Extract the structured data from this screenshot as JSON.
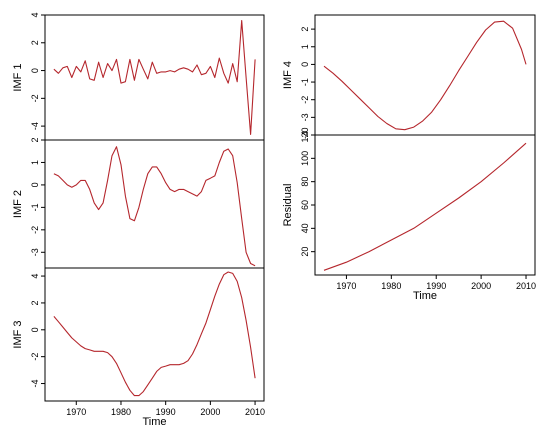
{
  "colors": {
    "line": "#b5272d",
    "axis": "#000000",
    "background": "#ffffff"
  },
  "chart_data": [
    {
      "id": "imf1",
      "type": "line",
      "ylabel": "IMF 1",
      "xlabel": "",
      "ylim": [
        -5.0,
        4.0
      ],
      "yticks": [
        -4,
        -2,
        0,
        2,
        4
      ],
      "xlim": [
        1963,
        2012
      ],
      "xticks": [],
      "grid": false,
      "x": [
        1965,
        1966,
        1967,
        1968,
        1969,
        1970,
        1971,
        1972,
        1973,
        1974,
        1975,
        1976,
        1977,
        1978,
        1979,
        1980,
        1981,
        1982,
        1983,
        1984,
        1985,
        1986,
        1987,
        1988,
        1989,
        1990,
        1991,
        1992,
        1993,
        1994,
        1995,
        1996,
        1997,
        1998,
        1999,
        2000,
        2001,
        2002,
        2003,
        2004,
        2005,
        2006,
        2007,
        2008,
        2009,
        2010
      ],
      "y": [
        0.1,
        -0.2,
        0.2,
        0.3,
        -0.5,
        0.3,
        -0.1,
        0.7,
        -0.6,
        -0.7,
        0.6,
        -0.5,
        0.5,
        0.0,
        0.8,
        -0.9,
        -0.8,
        0.8,
        -0.7,
        0.8,
        0.1,
        -0.6,
        0.6,
        -0.2,
        -0.1,
        -0.1,
        0.0,
        -0.1,
        0.1,
        0.2,
        0.1,
        -0.1,
        0.4,
        -0.3,
        -0.2,
        0.3,
        -0.5,
        0.9,
        -0.2,
        -0.9,
        0.5,
        -0.8,
        3.6,
        -0.5,
        -4.6,
        0.8
      ]
    },
    {
      "id": "imf2",
      "type": "line",
      "ylabel": "IMF 2",
      "xlabel": "",
      "ylim": [
        -3.7,
        2.0
      ],
      "yticks": [
        -3,
        -2,
        -1,
        0,
        1,
        2
      ],
      "xlim": [
        1963,
        2012
      ],
      "xticks": [],
      "grid": false,
      "x": [
        1965,
        1966,
        1967,
        1968,
        1969,
        1970,
        1971,
        1972,
        1973,
        1974,
        1975,
        1976,
        1977,
        1978,
        1979,
        1980,
        1981,
        1982,
        1983,
        1984,
        1985,
        1986,
        1987,
        1988,
        1989,
        1990,
        1991,
        1992,
        1993,
        1994,
        1995,
        1996,
        1997,
        1998,
        1999,
        2000,
        2001,
        2002,
        2003,
        2004,
        2005,
        2006,
        2007,
        2008,
        2009,
        2010
      ],
      "y": [
        0.5,
        0.4,
        0.2,
        0.0,
        -0.1,
        0.0,
        0.2,
        0.2,
        -0.2,
        -0.8,
        -1.1,
        -0.8,
        0.2,
        1.3,
        1.7,
        0.9,
        -0.5,
        -1.5,
        -1.6,
        -1.0,
        -0.2,
        0.5,
        0.8,
        0.8,
        0.5,
        0.1,
        -0.2,
        -0.3,
        -0.2,
        -0.2,
        -0.3,
        -0.4,
        -0.5,
        -0.3,
        0.2,
        0.3,
        0.4,
        1.0,
        1.5,
        1.6,
        1.3,
        0.1,
        -1.5,
        -3.0,
        -3.5,
        -3.6
      ]
    },
    {
      "id": "imf3",
      "type": "line",
      "ylabel": "IMF 3",
      "xlabel": "Time",
      "ylim": [
        -5.3,
        4.6
      ],
      "yticks": [
        -4,
        -2,
        0,
        2,
        4
      ],
      "xlim": [
        1963,
        2012
      ],
      "xticks": [
        1970,
        1980,
        1990,
        2000,
        2010
      ],
      "grid": false,
      "x": [
        1965,
        1966,
        1967,
        1968,
        1969,
        1970,
        1971,
        1972,
        1973,
        1974,
        1975,
        1976,
        1977,
        1978,
        1979,
        1980,
        1981,
        1982,
        1983,
        1984,
        1985,
        1986,
        1987,
        1988,
        1989,
        1990,
        1991,
        1992,
        1993,
        1994,
        1995,
        1996,
        1997,
        1998,
        1999,
        2000,
        2001,
        2002,
        2003,
        2004,
        2005,
        2006,
        2007,
        2008,
        2009,
        2010
      ],
      "y": [
        1.0,
        0.6,
        0.2,
        -0.2,
        -0.6,
        -0.9,
        -1.2,
        -1.4,
        -1.5,
        -1.6,
        -1.6,
        -1.6,
        -1.7,
        -2.0,
        -2.5,
        -3.2,
        -3.9,
        -4.5,
        -4.9,
        -4.9,
        -4.6,
        -4.1,
        -3.6,
        -3.1,
        -2.8,
        -2.7,
        -2.6,
        -2.6,
        -2.6,
        -2.5,
        -2.3,
        -1.8,
        -1.1,
        -0.3,
        0.5,
        1.5,
        2.5,
        3.4,
        4.1,
        4.3,
        4.2,
        3.6,
        2.4,
        0.7,
        -1.3,
        -3.6
      ]
    },
    {
      "id": "imf4",
      "type": "line",
      "ylabel": "IMF 4",
      "xlabel": "",
      "ylim": [
        -4.0,
        2.8
      ],
      "yticks": [
        -4,
        -3,
        -2,
        -1,
        0,
        1,
        2
      ],
      "ytick_labels": [
        "-4",
        "-3",
        "-2",
        "-1",
        "0",
        "1",
        "2"
      ],
      "xlim": [
        1963,
        2012
      ],
      "xticks": [],
      "grid": false,
      "x": [
        1965,
        1967,
        1969,
        1971,
        1973,
        1975,
        1977,
        1979,
        1981,
        1983,
        1985,
        1987,
        1989,
        1991,
        1993,
        1995,
        1997,
        1999,
        2001,
        2003,
        2005,
        2007,
        2009,
        2010
      ],
      "y": [
        -0.1,
        -0.5,
        -0.95,
        -1.45,
        -1.95,
        -2.45,
        -2.95,
        -3.35,
        -3.65,
        -3.7,
        -3.55,
        -3.2,
        -2.7,
        -2.0,
        -1.2,
        -0.35,
        0.45,
        1.25,
        1.95,
        2.4,
        2.45,
        2.05,
        0.85,
        0.0
      ]
    },
    {
      "id": "residual",
      "type": "line",
      "ylabel": "Residual",
      "xlabel": "Time",
      "ylim": [
        0,
        120
      ],
      "yticks": [
        20,
        40,
        60,
        80,
        100,
        120
      ],
      "xlim": [
        1963,
        2012
      ],
      "xticks": [
        1970,
        1980,
        1990,
        2000,
        2010
      ],
      "grid": false,
      "x": [
        1965,
        1970,
        1975,
        1980,
        1985,
        1990,
        1995,
        2000,
        2005,
        2010
      ],
      "y": [
        4,
        11,
        20,
        30,
        40,
        53,
        66,
        80,
        96,
        113
      ]
    }
  ]
}
